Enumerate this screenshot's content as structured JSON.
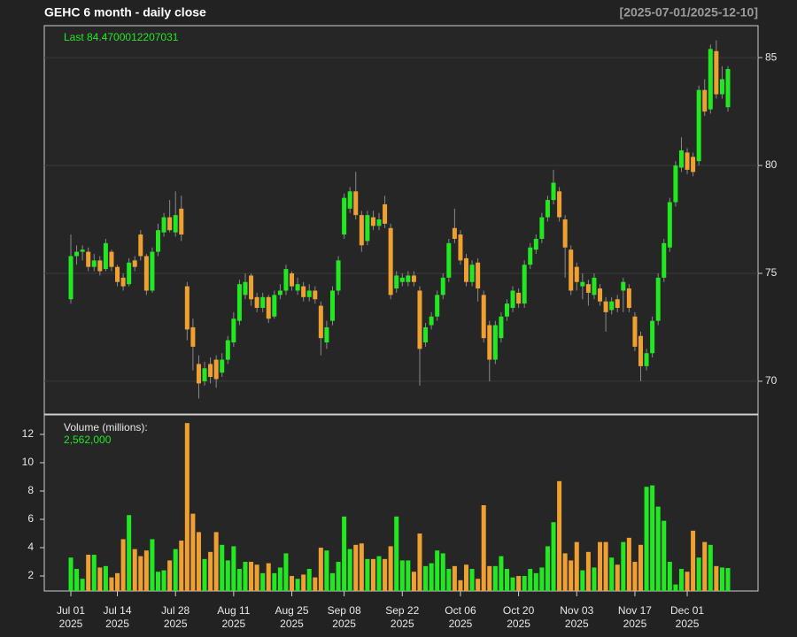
{
  "chart_data": {
    "type": "candlestick",
    "title": "GEHC  6 month - daily close",
    "date_range": "[2025-07-01/2025-12-10]",
    "last_label": "Last 84.4700012207031",
    "volume_title": "Volume (millions):",
    "volume_last_label": "2,562,000",
    "up_color": "#22e822",
    "down_color": "#f0a030",
    "wick_color": "#8a8a8a",
    "x": [
      "2025-07-01",
      "2025-07-02",
      "2025-07-03",
      "2025-07-07",
      "2025-07-08",
      "2025-07-09",
      "2025-07-10",
      "2025-07-11",
      "2025-07-14",
      "2025-07-15",
      "2025-07-16",
      "2025-07-17",
      "2025-07-18",
      "2025-07-21",
      "2025-07-22",
      "2025-07-23",
      "2025-07-24",
      "2025-07-25",
      "2025-07-28",
      "2025-07-29",
      "2025-07-30",
      "2025-07-31",
      "2025-08-01",
      "2025-08-04",
      "2025-08-05",
      "2025-08-06",
      "2025-08-07",
      "2025-08-08",
      "2025-08-11",
      "2025-08-12",
      "2025-08-13",
      "2025-08-14",
      "2025-08-15",
      "2025-08-18",
      "2025-08-19",
      "2025-08-20",
      "2025-08-21",
      "2025-08-22",
      "2025-08-25",
      "2025-08-26",
      "2025-08-27",
      "2025-08-28",
      "2025-08-29",
      "2025-09-02",
      "2025-09-03",
      "2025-09-04",
      "2025-09-05",
      "2025-09-08",
      "2025-09-09",
      "2025-09-10",
      "2025-09-11",
      "2025-09-12",
      "2025-09-15",
      "2025-09-16",
      "2025-09-17",
      "2025-09-18",
      "2025-09-19",
      "2025-09-22",
      "2025-09-23",
      "2025-09-24",
      "2025-09-25",
      "2025-09-26",
      "2025-09-29",
      "2025-09-30",
      "2025-10-01",
      "2025-10-02",
      "2025-10-03",
      "2025-10-06",
      "2025-10-07",
      "2025-10-08",
      "2025-10-09",
      "2025-10-10",
      "2025-10-13",
      "2025-10-14",
      "2025-10-15",
      "2025-10-16",
      "2025-10-17",
      "2025-10-20",
      "2025-10-21",
      "2025-10-22",
      "2025-10-23",
      "2025-10-24",
      "2025-10-27",
      "2025-10-28",
      "2025-10-29",
      "2025-10-30",
      "2025-10-31",
      "2025-11-03",
      "2025-11-04",
      "2025-11-05",
      "2025-11-06",
      "2025-11-07",
      "2025-11-10",
      "2025-11-11",
      "2025-11-12",
      "2025-11-13",
      "2025-11-14",
      "2025-11-17",
      "2025-11-18",
      "2025-11-19",
      "2025-11-20",
      "2025-11-21",
      "2025-11-24",
      "2025-11-25",
      "2025-11-26",
      "2025-11-28",
      "2025-12-01",
      "2025-12-02",
      "2025-12-03",
      "2025-12-04",
      "2025-12-05",
      "2025-12-08",
      "2025-12-09",
      "2025-12-10"
    ],
    "open": [
      73.8,
      75.8,
      76.0,
      76.0,
      75.3,
      75.6,
      75.2,
      76.0,
      75.3,
      74.8,
      74.5,
      75.6,
      76.8,
      75.8,
      74.2,
      76.0,
      76.9,
      77.6,
      76.9,
      78.0,
      74.4,
      72.5,
      70.8,
      70.0,
      70.8,
      71.0,
      70.4,
      71.0,
      71.8,
      72.8,
      74.0,
      74.9,
      73.9,
      73.4,
      73.9,
      73.0,
      74.0,
      74.2,
      75.0,
      74.2,
      74.4,
      73.9,
      74.2,
      73.5,
      71.8,
      72.8,
      74.2,
      76.8,
      78.0,
      78.8,
      77.7,
      76.5,
      77.6,
      77.2,
      78.2,
      77.1,
      74.3,
      74.6,
      74.6,
      74.9,
      74.2,
      71.8,
      72.6,
      73.0,
      74.0,
      74.8,
      77.1,
      76.8,
      75.7,
      74.6,
      75.5,
      74.0,
      72.6,
      71.0,
      72.0,
      73.0,
      73.4,
      74.1,
      73.6,
      75.4,
      76.1,
      76.6,
      77.6,
      78.4,
      78.8,
      77.5,
      76.1,
      75.3,
      74.4,
      74.5,
      74.0,
      74.3,
      73.7,
      73.3,
      73.8,
      74.2,
      74.3,
      73.0,
      72.1,
      70.7,
      71.3,
      72.8,
      74.8,
      76.2,
      78.3,
      79.9,
      80.6,
      80.4,
      80.2,
      83.5,
      82.6,
      85.3,
      83.3,
      82.7
    ],
    "high": [
      76.8,
      76.3,
      76.3,
      76.2,
      75.9,
      75.8,
      76.6,
      76.1,
      75.4,
      75.0,
      75.7,
      75.8,
      77.0,
      75.9,
      76.2,
      77.3,
      77.8,
      78.4,
      78.8,
      78.6,
      74.6,
      72.9,
      71.2,
      70.9,
      71.1,
      71.2,
      71.3,
      72.1,
      73.2,
      74.7,
      75.0,
      75.0,
      74.1,
      74.1,
      74.0,
      74.2,
      74.5,
      75.4,
      75.1,
      74.8,
      74.6,
      74.5,
      74.4,
      73.7,
      72.8,
      74.4,
      75.8,
      78.7,
      79.0,
      79.7,
      77.9,
      77.9,
      77.9,
      77.8,
      78.6,
      77.3,
      75.1,
      75.0,
      75.1,
      75.1,
      74.4,
      72.7,
      73.2,
      74.2,
      75.0,
      76.6,
      78.0,
      77.0,
      75.9,
      75.6,
      75.7,
      74.2,
      72.8,
      72.8,
      73.2,
      73.8,
      74.4,
      74.3,
      75.6,
      76.4,
      76.8,
      77.8,
      78.6,
      79.8,
      79.0,
      77.7,
      76.3,
      75.5,
      75.0,
      74.7,
      75.0,
      74.5,
      73.9,
      73.9,
      74.0,
      74.8,
      74.5,
      73.2,
      72.3,
      71.5,
      73.0,
      75.0,
      76.6,
      78.5,
      80.2,
      81.3,
      80.8,
      80.6,
      83.7,
      84.0,
      85.6,
      85.8,
      84.6,
      84.6
    ],
    "low": [
      73.6,
      75.4,
      75.6,
      75.1,
      75.1,
      74.9,
      75.1,
      75.1,
      74.4,
      74.2,
      74.4,
      75.1,
      75.6,
      74.0,
      74.1,
      75.8,
      76.7,
      76.9,
      76.7,
      76.5,
      71.9,
      70.5,
      69.2,
      69.8,
      69.9,
      69.7,
      70.2,
      70.8,
      71.6,
      72.6,
      73.8,
      73.5,
      73.2,
      73.2,
      72.7,
      72.9,
      73.8,
      74.0,
      74.2,
      74.0,
      73.7,
      73.7,
      73.6,
      71.2,
      71.5,
      72.6,
      74.0,
      76.6,
      77.8,
      77.5,
      76.0,
      76.3,
      77.0,
      77.0,
      77.1,
      73.8,
      74.1,
      74.4,
      74.4,
      74.4,
      69.8,
      71.6,
      72.4,
      72.8,
      73.8,
      74.6,
      76.4,
      75.4,
      74.4,
      74.4,
      73.7,
      71.8,
      70.0,
      70.8,
      71.8,
      72.8,
      73.2,
      73.4,
      73.4,
      75.2,
      75.9,
      76.4,
      77.4,
      78.2,
      77.4,
      74.8,
      74.0,
      74.2,
      73.8,
      73.5,
      73.8,
      73.5,
      72.3,
      73.1,
      73.2,
      73.2,
      73.2,
      71.4,
      70.0,
      70.5,
      71.1,
      72.6,
      74.6,
      76.0,
      78.1,
      79.7,
      79.6,
      79.5,
      80.0,
      82.3,
      82.4,
      83.1,
      83.1,
      82.5
    ],
    "close": [
      75.8,
      76.0,
      76.1,
      75.3,
      75.6,
      75.1,
      76.4,
      75.3,
      74.6,
      74.4,
      75.5,
      75.3,
      75.8,
      74.2,
      76.0,
      77.0,
      77.6,
      77.0,
      77.7,
      76.8,
      72.4,
      71.6,
      69.9,
      70.6,
      70.2,
      70.1,
      71.0,
      71.9,
      72.9,
      74.5,
      74.6,
      73.8,
      73.4,
      73.9,
      72.9,
      74.0,
      74.2,
      75.2,
      74.4,
      74.5,
      73.9,
      74.2,
      73.8,
      72.0,
      72.5,
      74.2,
      75.6,
      78.5,
      78.8,
      77.7,
      76.3,
      77.7,
      77.2,
      77.5,
      77.3,
      74.0,
      74.9,
      74.8,
      74.9,
      74.6,
      71.5,
      72.5,
      73.0,
      74.0,
      74.8,
      76.4,
      76.6,
      75.6,
      74.6,
      75.4,
      74.3,
      72.0,
      71.0,
      72.6,
      73.0,
      73.6,
      74.2,
      73.6,
      75.4,
      76.2,
      76.6,
      77.6,
      78.4,
      79.2,
      77.6,
      76.2,
      74.2,
      74.6,
      74.6,
      74.1,
      74.8,
      73.7,
      73.2,
      73.7,
      73.4,
      74.6,
      73.4,
      71.6,
      70.7,
      71.3,
      72.8,
      74.8,
      76.4,
      78.3,
      80.0,
      80.7,
      79.8,
      79.7,
      83.5,
      82.5,
      85.4,
      83.3,
      84.0,
      84.47
    ],
    "volume": [
      3.3,
      2.5,
      1.8,
      3.5,
      3.5,
      2.6,
      2.7,
      1.9,
      2.2,
      4.6,
      6.3,
      3.9,
      3.4,
      3.8,
      4.6,
      2.3,
      2.4,
      3.1,
      3.9,
      4.5,
      12.8,
      6.4,
      5.1,
      3.2,
      3.7,
      5.1,
      4.2,
      3.1,
      4.1,
      2.5,
      3.0,
      3.0,
      2.8,
      2.2,
      2.9,
      2.2,
      2.6,
      3.6,
      2.0,
      1.8,
      2.1,
      2.5,
      1.9,
      4.0,
      3.8,
      2.2,
      3.0,
      6.2,
      3.9,
      4.2,
      4.3,
      3.2,
      3.2,
      3.4,
      3.2,
      4.1,
      6.2,
      3.1,
      3.1,
      2.3,
      5.0,
      2.7,
      2.9,
      3.8,
      3.6,
      2.5,
      2.7,
      1.7,
      2.8,
      2.5,
      1.8,
      7.0,
      2.7,
      2.7,
      3.4,
      2.5,
      1.9,
      2.0,
      2.0,
      2.5,
      2.2,
      2.6,
      4.1,
      5.8,
      8.7,
      3.6,
      3.1,
      4.4,
      2.4,
      3.7,
      2.6,
      4.4,
      4.4,
      3.3,
      2.8,
      4.4,
      4.7,
      3.0,
      4.2,
      8.3,
      8.4,
      6.9,
      5.9,
      3.0,
      1.4,
      2.5,
      2.3,
      5.2,
      3.3,
      4.4,
      4.2,
      2.7,
      2.6,
      2.562
    ],
    "ylim": [
      68.48,
      86.48
    ],
    "yticks": [
      70,
      75,
      80,
      85
    ],
    "vlim": [
      0.94,
      13.375
    ],
    "vticks": [
      2,
      4,
      6,
      8,
      10,
      12
    ],
    "xticks": [
      {
        "value": "2025-07-01",
        "label": "Jul 01",
        "year": "2025"
      },
      {
        "value": "2025-07-14",
        "label": "Jul 14",
        "year": "2025"
      },
      {
        "value": "2025-07-28",
        "label": "Jul 28",
        "year": "2025"
      },
      {
        "value": "2025-08-11",
        "label": "Aug 11",
        "year": "2025"
      },
      {
        "value": "2025-08-25",
        "label": "Aug 25",
        "year": "2025"
      },
      {
        "value": "2025-09-08",
        "label": "Sep 08",
        "year": "2025"
      },
      {
        "value": "2025-09-22",
        "label": "Sep 22",
        "year": "2025"
      },
      {
        "value": "2025-10-06",
        "label": "Oct 06",
        "year": "2025"
      },
      {
        "value": "2025-10-20",
        "label": "Oct 20",
        "year": "2025"
      },
      {
        "value": "2025-11-03",
        "label": "Nov 03",
        "year": "2025"
      },
      {
        "value": "2025-11-17",
        "label": "Nov 17",
        "year": "2025"
      },
      {
        "value": "2025-12-01",
        "label": "Dec 01",
        "year": "2025"
      }
    ],
    "grid": true
  }
}
